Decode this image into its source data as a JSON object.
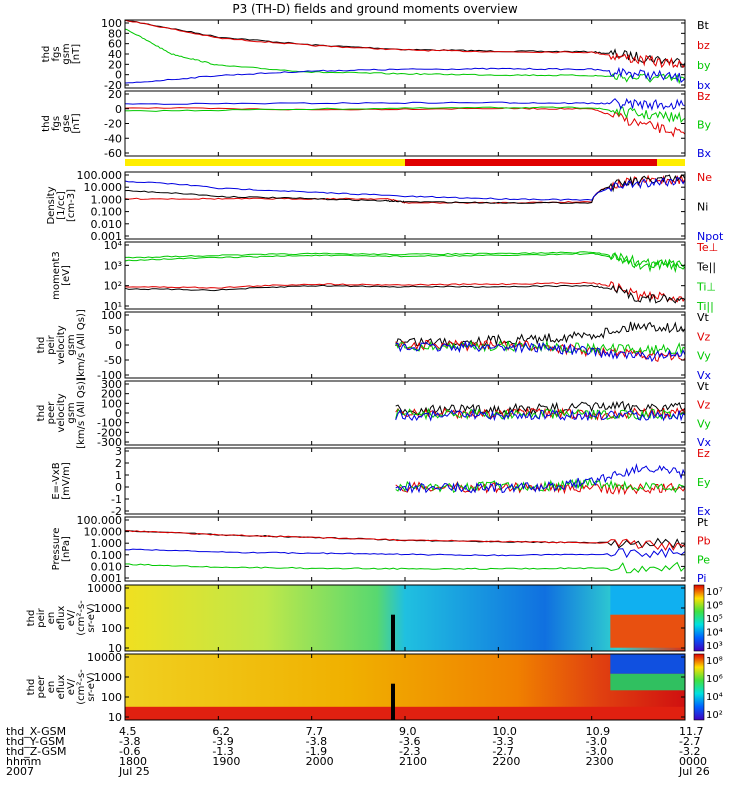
{
  "title": "P3 (TH-D) fields and ground moments overview",
  "colors": {
    "black": "#000000",
    "red": "#e00000",
    "green": "#00c800",
    "blue": "#0000e0",
    "yellow": "#ffee00"
  },
  "panels": [
    {
      "id": "fgs_gsm",
      "ylabel": [
        "thd",
        "fgs",
        "gsm",
        "[nT]"
      ],
      "ticks": [
        "100",
        "80",
        "60",
        "40",
        "20",
        "0",
        "-20"
      ],
      "legend": [
        {
          "text": "Bt",
          "color": "black"
        },
        {
          "text": "bz",
          "color": "red"
        },
        {
          "text": "by",
          "color": "green"
        },
        {
          "text": "bx",
          "color": "blue"
        }
      ]
    },
    {
      "id": "fgs_gse",
      "ylabel": [
        "thd",
        "fgs",
        "gse",
        "[nT]"
      ],
      "ticks": [
        "20",
        "0",
        "-20",
        "-40",
        "-60"
      ],
      "legend": [
        {
          "text": "Bz",
          "color": "red"
        },
        {
          "text": "By",
          "color": "green"
        },
        {
          "text": "Bx",
          "color": "blue"
        }
      ]
    },
    {
      "id": "density",
      "ylabel": [
        "Density",
        "[1/cc]",
        "[cm-3]"
      ],
      "ticks": [
        "100.000",
        "10.000",
        "1.000",
        "0.100",
        "0.010",
        "0.001"
      ],
      "legend": [
        {
          "text": "Ne",
          "color": "red"
        },
        {
          "text": "Ni",
          "color": "black"
        },
        {
          "text": "Npot",
          "color": "blue"
        }
      ]
    },
    {
      "id": "temperature",
      "ylabel": [
        "moment3",
        "[eV]"
      ],
      "ticks": [
        "10⁴",
        "10³",
        "10²",
        "10¹"
      ],
      "legend": [
        {
          "text": "Te⊥",
          "color": "red"
        },
        {
          "text": "Te||",
          "color": "black"
        },
        {
          "text": "Ti⊥",
          "color": "green"
        },
        {
          "text": "Ti||",
          "color": "green"
        }
      ]
    },
    {
      "id": "peir_vel",
      "ylabel": [
        "thd",
        "peir",
        "velocity",
        "gsm",
        "[km/s (All Qs)]"
      ],
      "ticks": [
        "100",
        "50",
        "0",
        "-50",
        "-100"
      ],
      "legend": [
        {
          "text": "Vt",
          "color": "black"
        },
        {
          "text": "Vz",
          "color": "red"
        },
        {
          "text": "Vy",
          "color": "green"
        },
        {
          "text": "Vx",
          "color": "blue"
        }
      ]
    },
    {
      "id": "peer_vel",
      "ylabel": [
        "thd",
        "peer",
        "velocity",
        "gsm",
        "[km/s (All Qs)]"
      ],
      "ticks": [
        "300",
        "200",
        "100",
        "0",
        "-100",
        "-200",
        "-300"
      ],
      "legend": [
        {
          "text": "Vt",
          "color": "black"
        },
        {
          "text": "Vz",
          "color": "red"
        },
        {
          "text": "Vy",
          "color": "green"
        },
        {
          "text": "Vx",
          "color": "blue"
        }
      ]
    },
    {
      "id": "efield",
      "ylabel": [
        "E=-VxB",
        "[mV/m]"
      ],
      "ticks": [
        "3",
        "2",
        "1",
        "0",
        "-1",
        "-2"
      ],
      "legend": [
        {
          "text": "Ez",
          "color": "red"
        },
        {
          "text": "Ey",
          "color": "green"
        },
        {
          "text": "Ex",
          "color": "blue"
        }
      ]
    },
    {
      "id": "pressure",
      "ylabel": [
        "Pressure",
        "[nPa]"
      ],
      "ticks": [
        "100.000",
        "10.000",
        "1.000",
        "0.100",
        "0.010",
        "0.001"
      ],
      "legend": [
        {
          "text": "Pt",
          "color": "black"
        },
        {
          "text": "Pb",
          "color": "red"
        },
        {
          "text": "Pe",
          "color": "green"
        },
        {
          "text": "Pi",
          "color": "blue"
        }
      ]
    },
    {
      "id": "peir_spec",
      "ylabel": [
        "thd",
        "peir",
        "en",
        "eflux",
        "eV/",
        "(cm²-s-",
        "sr-eV)"
      ],
      "ticks": [
        "10000",
        "1000",
        "100",
        "10"
      ],
      "cbar": [
        "10⁷",
        "10⁶",
        "10⁵",
        "10⁴",
        "10³"
      ]
    },
    {
      "id": "peer_spec",
      "ylabel": [
        "thd",
        "peer",
        "en",
        "eflux",
        "eV/",
        "(cm²-s-",
        "sr-eV)"
      ],
      "ticks": [
        "10000",
        "1000",
        "100",
        "10"
      ],
      "cbar": [
        "10⁸",
        "10⁶",
        "10⁴",
        "10²"
      ]
    }
  ],
  "footer": {
    "row_labels": [
      "thd_X-GSM",
      "thd_Y-GSM",
      "thd_Z-GSM",
      "hhmm",
      "2007"
    ],
    "ticks": [
      {
        "x": "4.5",
        "y": "-3.8",
        "z": "-0.6",
        "hhmm": "1800",
        "date": "Jul 25"
      },
      {
        "x": "6.2",
        "y": "-3.9",
        "z": "-1.3",
        "hhmm": "1900",
        "date": ""
      },
      {
        "x": "7.7",
        "y": "-3.8",
        "z": "-1.9",
        "hhmm": "2000",
        "date": ""
      },
      {
        "x": "9.0",
        "y": "-3.6",
        "z": "-2.3",
        "hhmm": "2100",
        "date": ""
      },
      {
        "x": "10.0",
        "y": "-3.3",
        "z": "-2.7",
        "hhmm": "2200",
        "date": ""
      },
      {
        "x": "10.9",
        "y": "-3.0",
        "z": "-3.0",
        "hhmm": "2300",
        "date": ""
      },
      {
        "x": "11.7",
        "y": "-2.7",
        "z": "-3.2",
        "hhmm": "0000",
        "date": "Jul 26"
      }
    ]
  },
  "chart_data": {
    "type": "line",
    "title": "P3 (TH-D) fields and ground moments overview",
    "x_axis": {
      "label": "hhmm",
      "ticks": [
        "1800",
        "1900",
        "2000",
        "2100",
        "2200",
        "2300",
        "0000"
      ],
      "range": [
        "2007-07-25 18:00",
        "2007-07-26 00:00"
      ]
    },
    "panels": [
      {
        "id": "fgs_gsm",
        "ylim": [
          -20,
          100
        ],
        "series": [
          {
            "name": "Bt",
            "x": [
              18.0,
              19.0,
              20.0,
              21.0,
              22.0,
              23.0,
              23.5,
              24.0
            ],
            "values": [
              100,
              70,
              56,
              48,
              45,
              44,
              35,
              25
            ]
          },
          {
            "name": "bz",
            "x": [
              18.0,
              19.0,
              20.0,
              21.0,
              22.0,
              23.0,
              23.5,
              24.0
            ],
            "values": [
              100,
              68,
              55,
              47,
              44,
              43,
              30,
              20
            ]
          },
          {
            "name": "by",
            "x": [
              18.0,
              18.5,
              19.0,
              20.0,
              21.0,
              22.0,
              23.0,
              23.5,
              24.0
            ],
            "values": [
              85,
              40,
              20,
              8,
              5,
              3,
              2,
              -2,
              -5
            ]
          },
          {
            "name": "bx",
            "x": [
              18.0,
              19.0,
              20.0,
              21.0,
              22.0,
              23.0,
              23.5,
              24.0
            ],
            "values": [
              -12,
              2,
              10,
              13,
              14,
              13,
              5,
              -3
            ]
          }
        ]
      },
      {
        "id": "fgs_gse",
        "ylim": [
          -70,
          20
        ],
        "series": [
          {
            "name": "Bz",
            "x": [
              18.0,
              20.0,
              22.0,
              23.0,
              23.5,
              24.0
            ],
            "values": [
              -3,
              -6,
              -4,
              -5,
              -25,
              -40
            ]
          },
          {
            "name": "By",
            "x": [
              18.0,
              20.0,
              22.0,
              23.0,
              23.5,
              24.0
            ],
            "values": [
              -8,
              -5,
              -3,
              -3,
              -12,
              -18
            ]
          },
          {
            "name": "Bx",
            "x": [
              18.0,
              20.0,
              22.0,
              23.0,
              23.5,
              24.0
            ],
            "values": [
              2,
              3,
              4,
              3,
              2,
              0
            ]
          }
        ]
      },
      {
        "id": "density",
        "ylog": true,
        "ylim": [
          0.001,
          100
        ],
        "series": [
          {
            "name": "Ne",
            "x": [
              18.0,
              19.0,
              20.0,
              20.8,
              21.0,
              22.0,
              23.0,
              23.5,
              24.0
            ],
            "values": [
              1.0,
              1.0,
              1.0,
              1.0,
              0.5,
              0.5,
              0.6,
              20,
              30
            ]
          },
          {
            "name": "Ni",
            "x": [
              18.0,
              19.0,
              20.0,
              20.8,
              21.0,
              22.0,
              23.0,
              23.5,
              24.0
            ],
            "values": [
              4,
              1.5,
              1.0,
              0.7,
              0.6,
              0.5,
              0.5,
              20,
              30
            ]
          },
          {
            "name": "Npot",
            "x": [
              18.0,
              19.0,
              20.0,
              21.0,
              22.0,
              23.0,
              23.5,
              24.0
            ],
            "values": [
              20,
              6,
              3,
              1.5,
              1.0,
              0.8,
              15,
              25
            ]
          }
        ]
      },
      {
        "id": "temperature",
        "ylog": true,
        "ylim": [
          10,
          10000
        ],
        "series": [
          {
            "name": "Te⊥",
            "x": [
              18.0,
              19.0,
              20.0,
              21.0,
              22.0,
              23.0,
              23.5,
              24.0
            ],
            "values": [
              100,
              90,
              130,
              120,
              130,
              150,
              40,
              30
            ]
          },
          {
            "name": "Te||",
            "x": [
              18.0,
              19.0,
              20.0,
              21.0,
              22.0,
              23.0,
              23.5,
              24.0
            ],
            "values": [
              80,
              70,
              110,
              100,
              100,
              110,
              30,
              25
            ]
          },
          {
            "name": "Ti⊥",
            "x": [
              18.0,
              19.0,
              20.0,
              21.0,
              22.0,
              23.0,
              23.5,
              24.0
            ],
            "values": [
              2000,
              2500,
              3000,
              2800,
              3000,
              3500,
              1200,
              1000
            ]
          },
          {
            "name": "Ti||",
            "x": [
              18.0,
              19.0,
              20.0,
              21.0,
              22.0,
              23.0,
              23.5,
              24.0
            ],
            "values": [
              1500,
              2000,
              2500,
              2300,
              2500,
              3000,
              900,
              800
            ]
          }
        ]
      },
      {
        "id": "peir_vel",
        "ylim": [
          -100,
          100
        ],
        "series": [
          {
            "name": "Vt",
            "x": [
              20.9,
              21.5,
              22.0,
              22.5,
              23.0,
              23.5,
              24.0
            ],
            "values": [
              10,
              10,
              15,
              20,
              30,
              60,
              50
            ]
          },
          {
            "name": "Vz",
            "x": [
              20.9,
              21.5,
              22.0,
              22.5,
              23.0,
              23.5,
              24.0
            ],
            "values": [
              0,
              -2,
              0,
              -5,
              -20,
              -30,
              -40
            ]
          },
          {
            "name": "Vy",
            "x": [
              20.9,
              21.5,
              22.0,
              22.5,
              23.0,
              23.5,
              24.0
            ],
            "values": [
              -5,
              -5,
              -3,
              -5,
              -10,
              -15,
              -10
            ]
          },
          {
            "name": "Vx",
            "x": [
              20.9,
              21.5,
              22.0,
              22.5,
              23.0,
              23.5,
              24.0
            ],
            "values": [
              -8,
              -6,
              -5,
              -8,
              -20,
              -35,
              -30
            ]
          }
        ]
      },
      {
        "id": "peer_vel",
        "ylim": [
          -300,
          300
        ],
        "series": [
          {
            "name": "Vt",
            "x": [
              20.9,
              21.5,
              22.0,
              22.5,
              23.0,
              23.5,
              24.0
            ],
            "values": [
              30,
              30,
              35,
              40,
              60,
              60,
              50
            ]
          },
          {
            "name": "Vz",
            "x": [
              20.9,
              21.5,
              22.0,
              22.5,
              23.0,
              23.5,
              24.0
            ],
            "values": [
              0,
              0,
              -10,
              0,
              -20,
              0,
              0
            ]
          },
          {
            "name": "Vy",
            "x": [
              20.9,
              21.5,
              22.0,
              22.5,
              23.0,
              23.5,
              24.0
            ],
            "values": [
              -10,
              -10,
              -15,
              -10,
              -20,
              -10,
              -10
            ]
          },
          {
            "name": "Vx",
            "x": [
              20.9,
              21.5,
              22.0,
              22.5,
              23.0,
              23.5,
              24.0
            ],
            "values": [
              -20,
              -20,
              -20,
              -20,
              -25,
              -20,
              -20
            ]
          }
        ]
      },
      {
        "id": "efield",
        "ylim": [
          -2,
          3
        ],
        "series": [
          {
            "name": "Ez",
            "x": [
              20.9,
              21.5,
              22.0,
              22.5,
              23.0,
              23.5,
              24.0
            ],
            "values": [
              0,
              0.05,
              0,
              0.05,
              -0.1,
              -0.1,
              0
            ]
          },
          {
            "name": "Ey",
            "x": [
              20.9,
              21.5,
              22.0,
              22.5,
              23.0,
              23.5,
              24.0
            ],
            "values": [
              0.1,
              0,
              0.2,
              0.1,
              0.3,
              0,
              0
            ]
          },
          {
            "name": "Ex",
            "x": [
              20.9,
              21.5,
              22.0,
              22.5,
              23.0,
              23.5,
              24.0
            ],
            "values": [
              0,
              0,
              0,
              0,
              0.5,
              1.5,
              1.0
            ]
          }
        ]
      },
      {
        "id": "pressure",
        "ylog": true,
        "ylim": [
          0.001,
          100
        ],
        "series": [
          {
            "name": "Pt",
            "x": [
              18.0,
              19.0,
              20.0,
              21.0,
              22.0,
              23.0,
              24.0
            ],
            "values": [
              8,
              4,
              2.5,
              1.5,
              1.2,
              1.0,
              0.8
            ]
          },
          {
            "name": "Pb",
            "x": [
              18.0,
              19.0,
              20.0,
              21.0,
              22.0,
              23.0,
              24.0
            ],
            "values": [
              8,
              4,
              2.5,
              1.5,
              1.2,
              1.0,
              0.5
            ]
          },
          {
            "name": "Pe",
            "x": [
              18.0,
              19.0,
              20.0,
              21.0,
              22.0,
              23.0,
              24.0
            ],
            "values": [
              0.02,
              0.012,
              0.01,
              0.009,
              0.009,
              0.01,
              0.012
            ]
          },
          {
            "name": "Pi",
            "x": [
              18.0,
              19.0,
              20.0,
              21.0,
              22.0,
              23.0,
              24.0
            ],
            "values": [
              0.3,
              0.18,
              0.15,
              0.12,
              0.1,
              0.12,
              0.2
            ]
          }
        ]
      }
    ]
  }
}
